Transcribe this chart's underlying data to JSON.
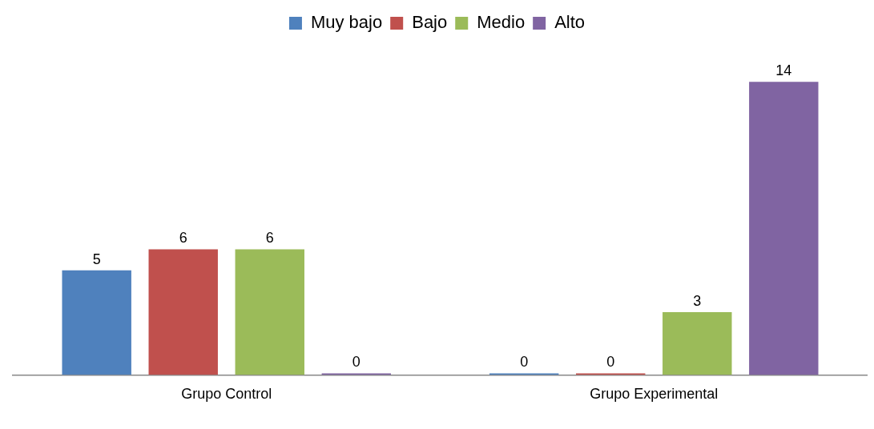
{
  "chart_data": {
    "type": "bar",
    "categories": [
      "Grupo Control",
      "Grupo Experimental"
    ],
    "series": [
      {
        "name": "Muy bajo",
        "color": "#4f81bd",
        "values": [
          5,
          0
        ]
      },
      {
        "name": "Bajo",
        "color": "#c0504d",
        "values": [
          6,
          0
        ]
      },
      {
        "name": "Medio",
        "color": "#9bbb59",
        "values": [
          6,
          3
        ]
      },
      {
        "name": "Alto",
        "color": "#8064a2",
        "values": [
          0,
          14
        ]
      }
    ],
    "data_labels": true,
    "legend": "top",
    "grid": false,
    "relative": false
  }
}
